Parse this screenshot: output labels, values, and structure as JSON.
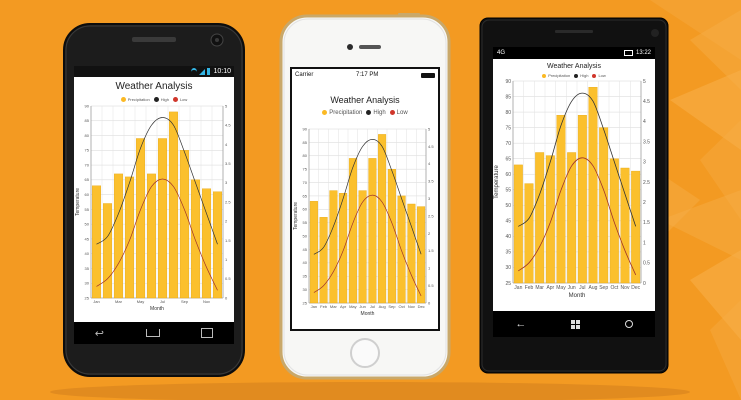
{
  "colors": {
    "background": "#f39a22",
    "background_light": "#f7b04a",
    "bar_fill": "#fbc02d",
    "bar_stroke": "#e6a817",
    "high_line": "#333333",
    "low_line": "#a0342a",
    "legend_precipitation": "#fbb924",
    "legend_high": "#222222",
    "legend_low": "#d0362b"
  },
  "android": {
    "status_time": "10:10",
    "icons": [
      "wifi-icon",
      "signal-icon",
      "battery-icon"
    ],
    "nav_icons": [
      "back-icon",
      "home-icon",
      "recent-apps-icon"
    ]
  },
  "ios": {
    "carrier": "Carrier",
    "status_time": "7:17 PM",
    "icons": [
      "wifi-icon",
      "battery-icon"
    ]
  },
  "windows": {
    "network": "4G",
    "status_time": "13:22",
    "icons": [
      "signal-icon",
      "battery-icon"
    ],
    "nav_icons": [
      "back-icon",
      "windows-icon",
      "search-icon"
    ]
  },
  "chart_data": {
    "type": "bar",
    "title": "Weather Analysis",
    "xlabel": "Month",
    "ylabel": "Temperature",
    "categories": [
      "Jan",
      "Feb",
      "Mar",
      "Apr",
      "May",
      "Jun",
      "Jul",
      "Aug",
      "Sep",
      "Oct",
      "Nov",
      "Dec"
    ],
    "categories_android": [
      "Jan",
      "Mar",
      "May",
      "Jul",
      "Sep",
      "Nov"
    ],
    "ylim": [
      25,
      90
    ],
    "y_ticks": [
      25,
      30,
      35,
      40,
      45,
      50,
      55,
      60,
      65,
      70,
      75,
      80,
      85,
      90
    ],
    "y2lim": [
      0,
      5
    ],
    "y2_ticks": [
      0,
      0.5,
      1,
      1.5,
      2,
      2.5,
      3,
      3.5,
      4,
      4.5,
      5
    ],
    "grid": true,
    "legend_position": "top-center",
    "series": [
      {
        "name": "Precipitation",
        "type": "bar",
        "axis": "left",
        "values": [
          63,
          57,
          67,
          66,
          79,
          67,
          79,
          88,
          75,
          65,
          62,
          61
        ]
      },
      {
        "name": "High",
        "type": "spline",
        "axis": "right",
        "values": [
          1.4,
          1.6,
          2.2,
          3.0,
          3.9,
          4.5,
          4.7,
          4.5,
          3.8,
          3.0,
          2.2,
          1.4
        ]
      },
      {
        "name": "Low",
        "type": "spline",
        "axis": "right",
        "values": [
          0.3,
          0.5,
          0.9,
          1.5,
          2.3,
          2.9,
          3.1,
          2.9,
          2.3,
          1.5,
          0.8,
          0.2
        ]
      }
    ]
  }
}
